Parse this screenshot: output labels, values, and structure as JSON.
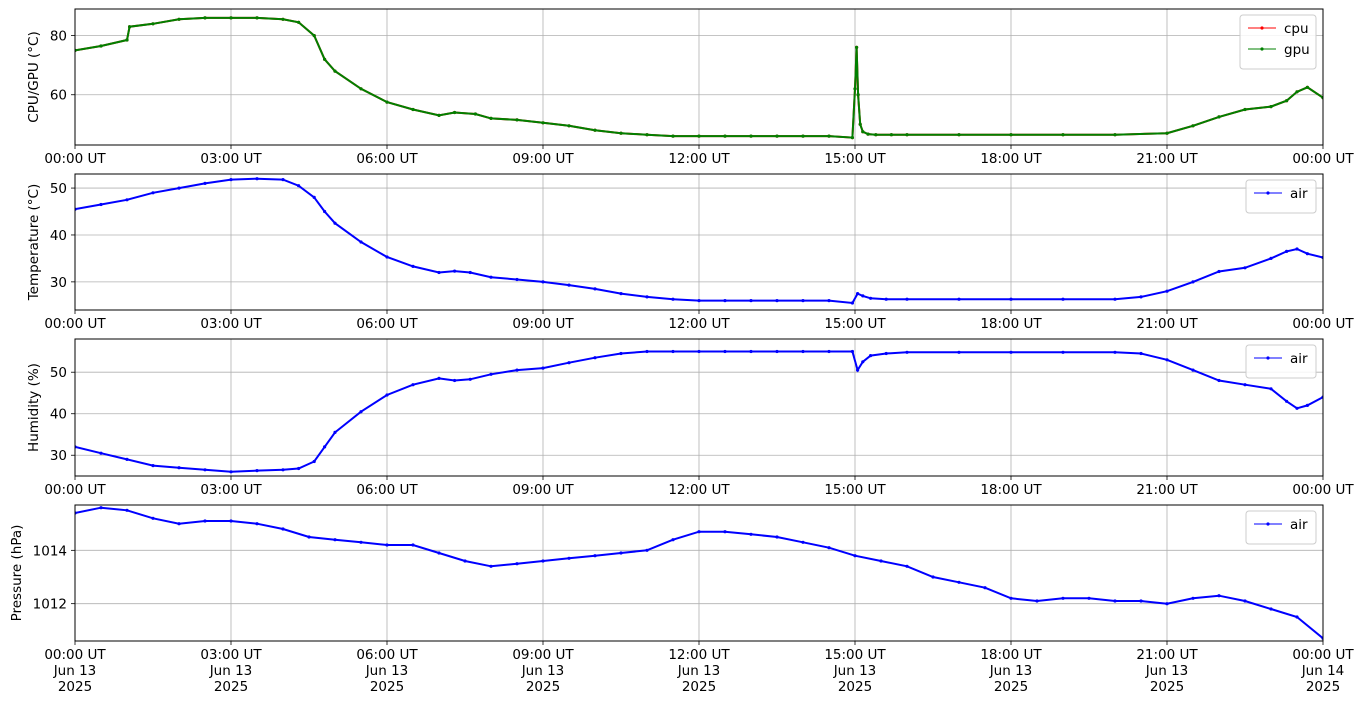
{
  "chart_data": [
    {
      "type": "line",
      "ylabel": "CPU/GPU (°C)",
      "ylim": [
        43,
        89
      ],
      "yticks": [
        60,
        80
      ],
      "xlim": [
        0,
        24
      ],
      "xtick_labels": [
        "00:00 UT",
        "03:00 UT",
        "06:00 UT",
        "09:00 UT",
        "12:00 UT",
        "15:00 UT",
        "18:00 UT",
        "21:00 UT",
        "00:00 UT"
      ],
      "grid": true,
      "legend": "top-right",
      "series": [
        {
          "name": "cpu",
          "color": "#ff0000",
          "x": [
            0,
            0.5,
            1,
            1.05,
            1.5,
            2,
            2.5,
            3,
            3.5,
            4,
            4.3,
            4.6,
            4.8,
            5,
            5.5,
            6,
            6.5,
            7,
            7.3,
            7.7,
            8,
            8.5,
            9,
            9.5,
            10,
            10.5,
            11,
            11.5,
            12,
            12.5,
            13,
            13.5,
            14,
            14.5,
            14.95,
            15.0,
            15.03,
            15.06,
            15.1,
            15.15,
            15.25,
            15.4,
            15.7,
            16,
            17,
            18,
            19,
            20,
            21,
            21.5,
            22,
            22.5,
            23,
            23.3,
            23.5,
            23.7,
            24
          ],
          "y": [
            75,
            76.5,
            78.5,
            83,
            84,
            85.5,
            86,
            86,
            86,
            85.5,
            84.5,
            80,
            72,
            68,
            62,
            57.5,
            55,
            53,
            54,
            53.5,
            52,
            51.5,
            50.5,
            49.5,
            48,
            47,
            46.5,
            46,
            46,
            46,
            46,
            46,
            46,
            46,
            45.5,
            62,
            76,
            60,
            50,
            47.5,
            46.7,
            46.5,
            46.5,
            46.5,
            46.5,
            46.5,
            46.5,
            46.5,
            47,
            49.5,
            52.5,
            55,
            56,
            58,
            61,
            62.5,
            59
          ]
        },
        {
          "name": "gpu",
          "color": "#008000",
          "x": [
            0,
            0.5,
            1,
            1.05,
            1.5,
            2,
            2.5,
            3,
            3.5,
            4,
            4.3,
            4.6,
            4.8,
            5,
            5.5,
            6,
            6.5,
            7,
            7.3,
            7.7,
            8,
            8.5,
            9,
            9.5,
            10,
            10.5,
            11,
            11.5,
            12,
            12.5,
            13,
            13.5,
            14,
            14.5,
            14.95,
            15.0,
            15.03,
            15.06,
            15.1,
            15.15,
            15.25,
            15.4,
            15.7,
            16,
            17,
            18,
            19,
            20,
            21,
            21.5,
            22,
            22.5,
            23,
            23.3,
            23.5,
            23.7,
            24
          ],
          "y": [
            75,
            76.5,
            78.5,
            83,
            84,
            85.5,
            86,
            86,
            86,
            85.5,
            84.5,
            80,
            72,
            68,
            62,
            57.5,
            55,
            53,
            54,
            53.5,
            52,
            51.5,
            50.5,
            49.5,
            48,
            47,
            46.5,
            46,
            46,
            46,
            46,
            46,
            46,
            46,
            45.5,
            62,
            76,
            60,
            50,
            47.5,
            46.7,
            46.5,
            46.5,
            46.5,
            46.5,
            46.5,
            46.5,
            46.5,
            47,
            49.5,
            52.5,
            55,
            56,
            58,
            61,
            62.5,
            59
          ]
        }
      ]
    },
    {
      "type": "line",
      "ylabel": "Temperature (°C)",
      "ylim": [
        24,
        53
      ],
      "yticks": [
        30,
        40,
        50
      ],
      "xlim": [
        0,
        24
      ],
      "xtick_labels": [
        "00:00 UT",
        "03:00 UT",
        "06:00 UT",
        "09:00 UT",
        "12:00 UT",
        "15:00 UT",
        "18:00 UT",
        "21:00 UT",
        "00:00 UT"
      ],
      "grid": true,
      "legend": "top-right",
      "series": [
        {
          "name": "air",
          "color": "#0000ff",
          "x": [
            0,
            0.5,
            1,
            1.5,
            2,
            2.5,
            3,
            3.5,
            4,
            4.3,
            4.6,
            4.8,
            5,
            5.5,
            6,
            6.5,
            7,
            7.3,
            7.6,
            8,
            8.5,
            9,
            9.5,
            10,
            10.5,
            11,
            11.5,
            12,
            12.5,
            13,
            13.5,
            14,
            14.5,
            14.95,
            15.05,
            15.15,
            15.3,
            15.6,
            16,
            17,
            18,
            19,
            20,
            20.5,
            21,
            21.5,
            22,
            22.5,
            23,
            23.3,
            23.5,
            23.7,
            24
          ],
          "y": [
            45.5,
            46.5,
            47.5,
            49,
            50,
            51,
            51.8,
            52,
            51.8,
            50.5,
            48,
            45,
            42.5,
            38.5,
            35.3,
            33.3,
            32,
            32.3,
            32,
            31,
            30.5,
            30,
            29.3,
            28.5,
            27.5,
            26.8,
            26.3,
            26,
            26,
            26,
            26,
            26,
            26,
            25.5,
            27.5,
            27,
            26.5,
            26.3,
            26.3,
            26.3,
            26.3,
            26.3,
            26.3,
            26.8,
            28,
            30,
            32.2,
            33,
            35,
            36.5,
            37,
            36,
            35.2
          ]
        }
      ]
    },
    {
      "type": "line",
      "ylabel": "Humidity (%)",
      "ylim": [
        25,
        58
      ],
      "yticks": [
        30,
        40,
        50
      ],
      "xlim": [
        0,
        24
      ],
      "xtick_labels": [
        "00:00 UT",
        "03:00 UT",
        "06:00 UT",
        "09:00 UT",
        "12:00 UT",
        "15:00 UT",
        "18:00 UT",
        "21:00 UT",
        "00:00 UT"
      ],
      "grid": true,
      "legend": "top-right",
      "series": [
        {
          "name": "air",
          "color": "#0000ff",
          "x": [
            0,
            0.5,
            1,
            1.5,
            2,
            2.5,
            3,
            3.5,
            4,
            4.3,
            4.6,
            4.8,
            5,
            5.5,
            6,
            6.5,
            7,
            7.3,
            7.6,
            8,
            8.5,
            9,
            9.5,
            10,
            10.5,
            11,
            11.5,
            12,
            12.5,
            13,
            13.5,
            14,
            14.5,
            14.95,
            15.05,
            15.15,
            15.3,
            15.6,
            16,
            17,
            18,
            19,
            20,
            20.5,
            21,
            21.5,
            22,
            22.5,
            23,
            23.3,
            23.5,
            23.7,
            24
          ],
          "y": [
            32,
            30.5,
            29,
            27.5,
            27,
            26.5,
            26,
            26.3,
            26.5,
            26.8,
            28.5,
            32,
            35.5,
            40.5,
            44.5,
            47,
            48.5,
            48,
            48.3,
            49.5,
            50.5,
            51,
            52.3,
            53.5,
            54.5,
            55,
            55,
            55,
            55,
            55,
            55,
            55,
            55,
            55,
            50.5,
            52.5,
            54,
            54.5,
            54.8,
            54.8,
            54.8,
            54.8,
            54.8,
            54.5,
            53,
            50.5,
            48,
            47,
            46,
            43,
            41.3,
            42,
            44
          ]
        }
      ]
    },
    {
      "type": "line",
      "ylabel": "Pressure (hPa)",
      "ylim": [
        1010.6,
        1015.7
      ],
      "yticks": [
        1012,
        1014
      ],
      "xlim": [
        0,
        24
      ],
      "xtick_labels": [
        "00:00 UT\nJun 13\n2025",
        "03:00 UT\nJun 13\n2025",
        "06:00 UT\nJun 13\n2025",
        "09:00 UT\nJun 13\n2025",
        "12:00 UT\nJun 13\n2025",
        "15:00 UT\nJun 13\n2025",
        "18:00 UT\nJun 13\n2025",
        "21:00 UT\nJun 13\n2025",
        "00:00 UT\nJun 14\n2025"
      ],
      "grid": true,
      "legend": "top-right",
      "series": [
        {
          "name": "air",
          "color": "#0000ff",
          "x": [
            0,
            0.5,
            1,
            1.5,
            2,
            2.5,
            3,
            3.5,
            4,
            4.5,
            5,
            5.5,
            6,
            6.5,
            7,
            7.5,
            8,
            8.5,
            9,
            9.5,
            10,
            10.5,
            11,
            11.5,
            12,
            12.5,
            13,
            13.5,
            14,
            14.5,
            15,
            15.5,
            16,
            16.5,
            17,
            17.5,
            18,
            18.5,
            19,
            19.5,
            20,
            20.5,
            21,
            21.5,
            22,
            22.5,
            23,
            23.5,
            24
          ],
          "y": [
            1015.4,
            1015.6,
            1015.5,
            1015.2,
            1015.0,
            1015.1,
            1015.1,
            1015.0,
            1014.8,
            1014.5,
            1014.4,
            1014.3,
            1014.2,
            1014.2,
            1013.9,
            1013.6,
            1013.4,
            1013.5,
            1013.6,
            1013.7,
            1013.8,
            1013.9,
            1014.0,
            1014.4,
            1014.7,
            1014.7,
            1014.6,
            1014.5,
            1014.3,
            1014.1,
            1013.8,
            1013.6,
            1013.4,
            1013.0,
            1012.8,
            1012.6,
            1012.2,
            1012.1,
            1012.2,
            1012.2,
            1012.1,
            1012.1,
            1012.0,
            1012.2,
            1012.3,
            1012.1,
            1011.8,
            1011.5,
            1010.7
          ]
        }
      ]
    }
  ]
}
